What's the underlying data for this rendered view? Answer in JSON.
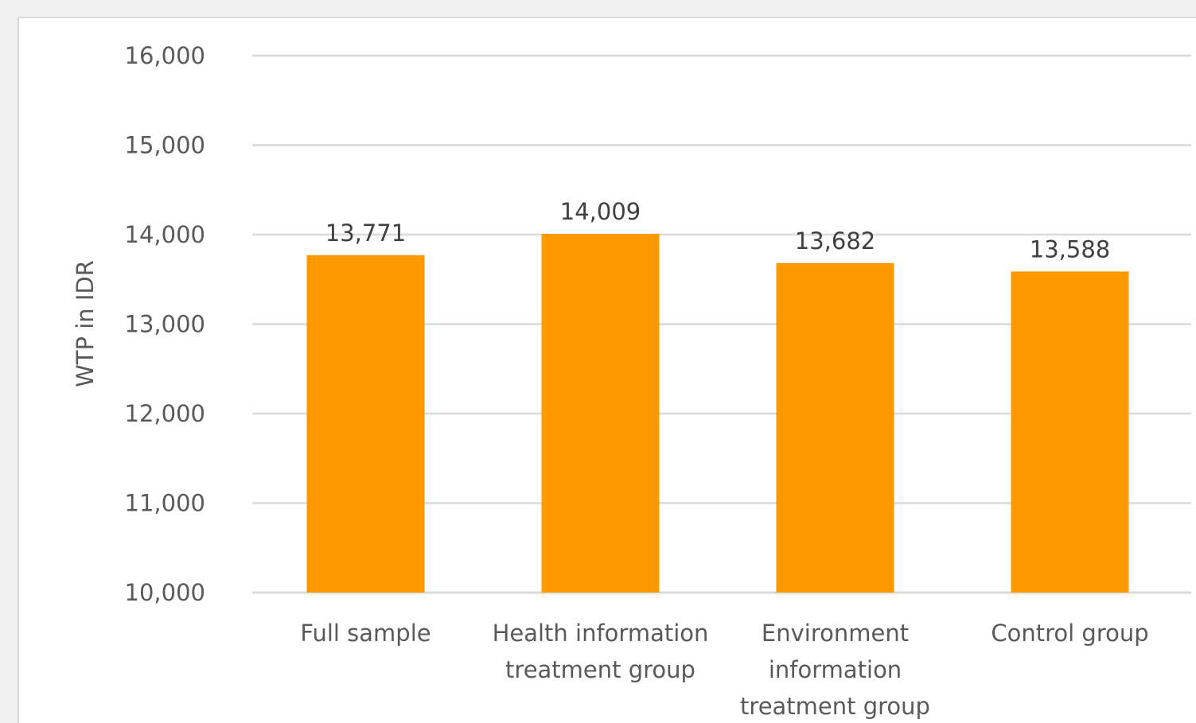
{
  "chart_data": {
    "type": "bar",
    "categories": [
      [
        "Full sample"
      ],
      [
        "Health information",
        "treatment group"
      ],
      [
        "Environment",
        "information",
        "treatment group"
      ],
      [
        "Control group"
      ]
    ],
    "values": [
      13771,
      14009,
      13682,
      13588
    ],
    "value_labels": [
      "13,771",
      "14,009",
      "13,682",
      "13,588"
    ],
    "ylabel": "WTP in IDR",
    "ylim": [
      10000,
      16000
    ],
    "yticks": [
      10000,
      11000,
      12000,
      13000,
      14000,
      15000,
      16000
    ],
    "ytick_labels": [
      "10,000",
      "11,000",
      "12,000",
      "13,000",
      "14,000",
      "15,000",
      "16,000"
    ],
    "grid": true,
    "bar_color": "#FF9900",
    "grid_color": "#D9D9D9"
  }
}
